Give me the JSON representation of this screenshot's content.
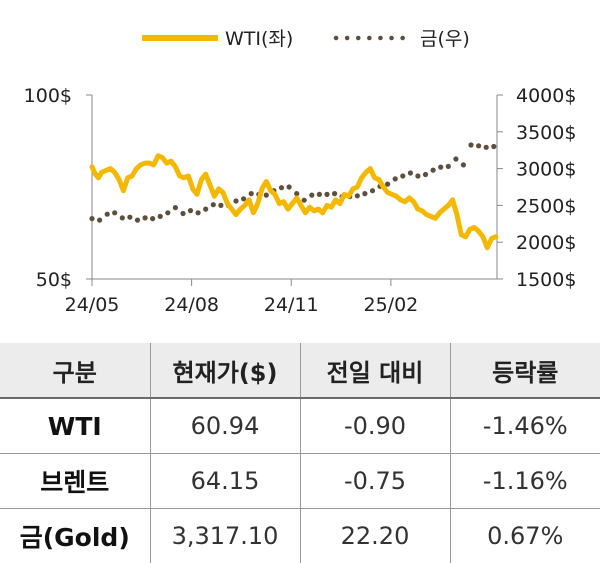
{
  "chart_data": {
    "type": "line",
    "legend": [
      {
        "name": "WTI(좌)",
        "color": "#F5B800",
        "style": "solid"
      },
      {
        "name": "금(우)",
        "color": "#5C4F3D",
        "style": "dotted"
      }
    ],
    "legend_position": "top-center",
    "x_ticks": [
      "24/05",
      "24/08",
      "24/11",
      "25/02"
    ],
    "x_range": [
      "2024-05-01",
      "2025-05-10"
    ],
    "y_left": {
      "ticks": [
        "100$",
        "50$"
      ],
      "range": [
        50,
        100
      ]
    },
    "y_right": {
      "ticks": [
        "4000$",
        "3500$",
        "3000$",
        "2500$",
        "2000$",
        "1500$"
      ],
      "range": [
        1500,
        4000
      ]
    },
    "grid": false,
    "series": [
      {
        "name": "WTI(좌)",
        "axis": "left",
        "color": "#F5B800",
        "x": [
          "2024-05-01",
          "2024-05-04",
          "2024-05-07",
          "2024-05-10",
          "2024-05-14",
          "2024-05-18",
          "2024-05-22",
          "2024-05-26",
          "2024-05-30",
          "2024-06-03",
          "2024-06-07",
          "2024-06-11",
          "2024-06-15",
          "2024-06-19",
          "2024-06-23",
          "2024-06-27",
          "2024-07-01",
          "2024-07-05",
          "2024-07-09",
          "2024-07-13",
          "2024-07-17",
          "2024-07-21",
          "2024-07-25",
          "2024-07-29",
          "2024-08-02",
          "2024-08-06",
          "2024-08-10",
          "2024-08-14",
          "2024-08-18",
          "2024-08-22",
          "2024-08-26",
          "2024-08-30",
          "2024-09-03",
          "2024-09-07",
          "2024-09-11",
          "2024-09-15",
          "2024-09-19",
          "2024-09-23",
          "2024-09-27",
          "2024-10-01",
          "2024-10-05",
          "2024-10-09",
          "2024-10-13",
          "2024-10-17",
          "2024-10-21",
          "2024-10-25",
          "2024-10-29",
          "2024-11-02",
          "2024-11-06",
          "2024-11-10",
          "2024-11-14",
          "2024-11-18",
          "2024-11-22",
          "2024-11-26",
          "2024-11-30",
          "2024-12-04",
          "2024-12-08",
          "2024-12-12",
          "2024-12-16",
          "2024-12-20",
          "2024-12-24",
          "2024-12-28",
          "2025-01-01",
          "2025-01-05",
          "2025-01-09",
          "2025-01-13",
          "2025-01-17",
          "2025-01-21",
          "2025-01-25",
          "2025-01-29",
          "2025-02-02",
          "2025-02-06",
          "2025-02-10",
          "2025-02-14",
          "2025-02-18",
          "2025-02-22",
          "2025-02-26",
          "2025-03-02",
          "2025-03-06",
          "2025-03-10",
          "2025-03-14",
          "2025-03-18",
          "2025-03-22",
          "2025-03-26",
          "2025-03-30",
          "2025-04-03",
          "2025-04-07",
          "2025-04-11",
          "2025-04-15",
          "2025-04-19",
          "2025-04-23",
          "2025-04-27",
          "2025-05-01",
          "2025-05-05",
          "2025-05-09"
        ],
        "y": [
          80.5,
          78.5,
          77.5,
          79.0,
          79.5,
          80.0,
          79.0,
          77.0,
          74.0,
          77.5,
          78.0,
          80.0,
          81.0,
          81.5,
          81.5,
          81.0,
          83.5,
          83.0,
          81.5,
          82.0,
          80.5,
          78.0,
          77.5,
          78.0,
          74.5,
          73.0,
          77.0,
          78.5,
          75.5,
          72.5,
          74.5,
          73.5,
          70.5,
          69.0,
          67.5,
          69.0,
          70.0,
          71.5,
          68.0,
          70.5,
          74.5,
          76.5,
          74.0,
          73.0,
          70.5,
          71.0,
          69.0,
          70.5,
          72.0,
          70.0,
          68.0,
          69.5,
          68.5,
          69.0,
          68.0,
          70.0,
          69.5,
          71.5,
          70.5,
          73.0,
          72.5,
          74.5,
          75.0,
          77.5,
          79.0,
          80.0,
          77.5,
          77.0,
          75.0,
          73.5,
          73.0,
          72.5,
          71.5,
          71.0,
          72.0,
          71.0,
          69.0,
          68.5,
          67.5,
          67.0,
          66.5,
          68.0,
          69.0,
          70.0,
          71.5,
          67.5,
          62.0,
          61.5,
          63.5,
          64.0,
          63.0,
          61.5,
          58.5,
          61.0,
          61.5
        ]
      },
      {
        "name": "금(우)",
        "axis": "right",
        "color": "#5C4F3D",
        "x": [
          "2024-05-01",
          "2024-05-08",
          "2024-05-15",
          "2024-05-22",
          "2024-05-29",
          "2024-06-05",
          "2024-06-12",
          "2024-06-19",
          "2024-06-26",
          "2024-07-03",
          "2024-07-10",
          "2024-07-17",
          "2024-07-24",
          "2024-07-31",
          "2024-08-07",
          "2024-08-14",
          "2024-08-21",
          "2024-08-28",
          "2024-09-04",
          "2024-09-11",
          "2024-09-18",
          "2024-09-25",
          "2024-10-02",
          "2024-10-09",
          "2024-10-16",
          "2024-10-23",
          "2024-10-30",
          "2024-11-06",
          "2024-11-13",
          "2024-11-20",
          "2024-11-27",
          "2024-12-04",
          "2024-12-11",
          "2024-12-18",
          "2024-12-25",
          "2025-01-01",
          "2025-01-08",
          "2025-01-15",
          "2025-01-22",
          "2025-01-29",
          "2025-02-05",
          "2025-02-12",
          "2025-02-19",
          "2025-02-26",
          "2025-03-05",
          "2025-03-12",
          "2025-03-19",
          "2025-03-26",
          "2025-04-02",
          "2025-04-09",
          "2025-04-16",
          "2025-04-23",
          "2025-04-30",
          "2025-05-07"
        ],
        "y": [
          2320,
          2300,
          2380,
          2400,
          2330,
          2340,
          2300,
          2330,
          2320,
          2350,
          2400,
          2470,
          2390,
          2430,
          2400,
          2450,
          2510,
          2500,
          2500,
          2560,
          2590,
          2660,
          2650,
          2640,
          2700,
          2740,
          2750,
          2660,
          2570,
          2640,
          2650,
          2650,
          2660,
          2620,
          2620,
          2630,
          2660,
          2700,
          2760,
          2790,
          2860,
          2900,
          2940,
          2900,
          2920,
          2980,
          3020,
          3030,
          3130,
          3050,
          3320,
          3310,
          3290,
          3300
        ]
      }
    ]
  },
  "table": {
    "headers": [
      "구분",
      "현재가($)",
      "전일 대비",
      "등락률"
    ],
    "rows": [
      [
        "WTI",
        "60.94",
        "-0.90",
        "-1.46%"
      ],
      [
        "브렌트",
        "64.15",
        "-0.75",
        "-1.16%"
      ],
      [
        "금(Gold)",
        "3,317.10",
        "22.20",
        "0.67%"
      ]
    ]
  }
}
